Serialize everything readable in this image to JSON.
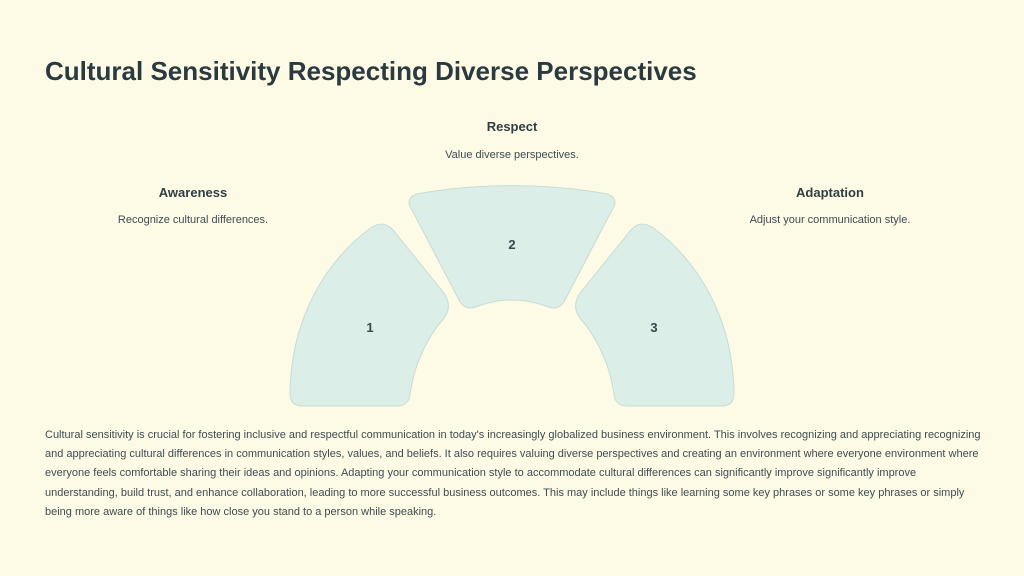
{
  "slide": {
    "title": "Cultural Sensitivity Respecting Diverse Perspectives",
    "stages": [
      {
        "number": "1",
        "title": "Awareness",
        "description": "Recognize cultural differences."
      },
      {
        "number": "2",
        "title": "Respect",
        "description": "Value diverse perspectives."
      },
      {
        "number": "3",
        "title": "Adaptation",
        "description": "Adjust your communication style."
      }
    ],
    "body": "Cultural sensitivity is crucial for fostering inclusive and respectful communication in today's increasingly globalized business environment. This involves recognizing and appreciating recognizing and appreciating cultural differences in communication styles, values, and beliefs. It also requires valuing diverse perspectives and creating an environment where everyone environment where everyone feels comfortable sharing their ideas and opinions. Adapting your communication style to accommodate cultural differences can significantly improve significantly improve understanding, build trust, and enhance collaboration, leading to more successful business outcomes. This may include things like learning some key phrases or some key phrases or simply being more aware of things like how close you stand to a person while speaking.",
    "colors": {
      "background": "#fdfbe6",
      "segment_fill": "#dbeee7",
      "title_text": "#2b3a40"
    }
  }
}
